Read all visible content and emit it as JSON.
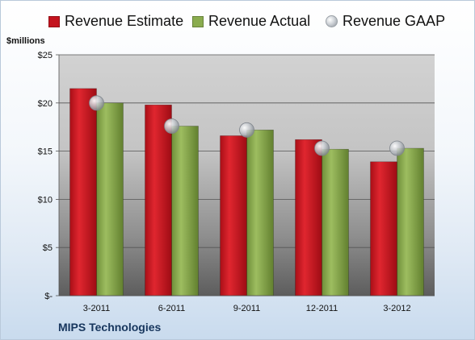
{
  "chart_data": {
    "type": "bar",
    "title": "",
    "ylabel": "$millions",
    "xlabel": "",
    "categories": [
      "3-2011",
      "6-2011",
      "9-2011",
      "12-2011",
      "3-2012"
    ],
    "series": [
      {
        "name": "Revenue Estimate",
        "values": [
          21.5,
          19.8,
          16.6,
          16.2,
          13.9
        ],
        "color": "#c4131e"
      },
      {
        "name": "Revenue Actual",
        "values": [
          20.0,
          17.6,
          17.2,
          15.2,
          15.3
        ],
        "color": "#8aac4e"
      }
    ],
    "scatter_series": {
      "name": "Revenue GAAP",
      "values": [
        20.0,
        17.6,
        17.2,
        15.3,
        15.3
      ],
      "color": "#b8bcc2"
    },
    "yticks": [
      0,
      5,
      10,
      15,
      20,
      25
    ],
    "ytick_labels": [
      "$-",
      "$5",
      "$10",
      "$15",
      "$20",
      "$25"
    ],
    "ylim": [
      0,
      25
    ],
    "grid": true,
    "legend_position": "top"
  },
  "footer": {
    "company": "MIPS Technologies"
  }
}
